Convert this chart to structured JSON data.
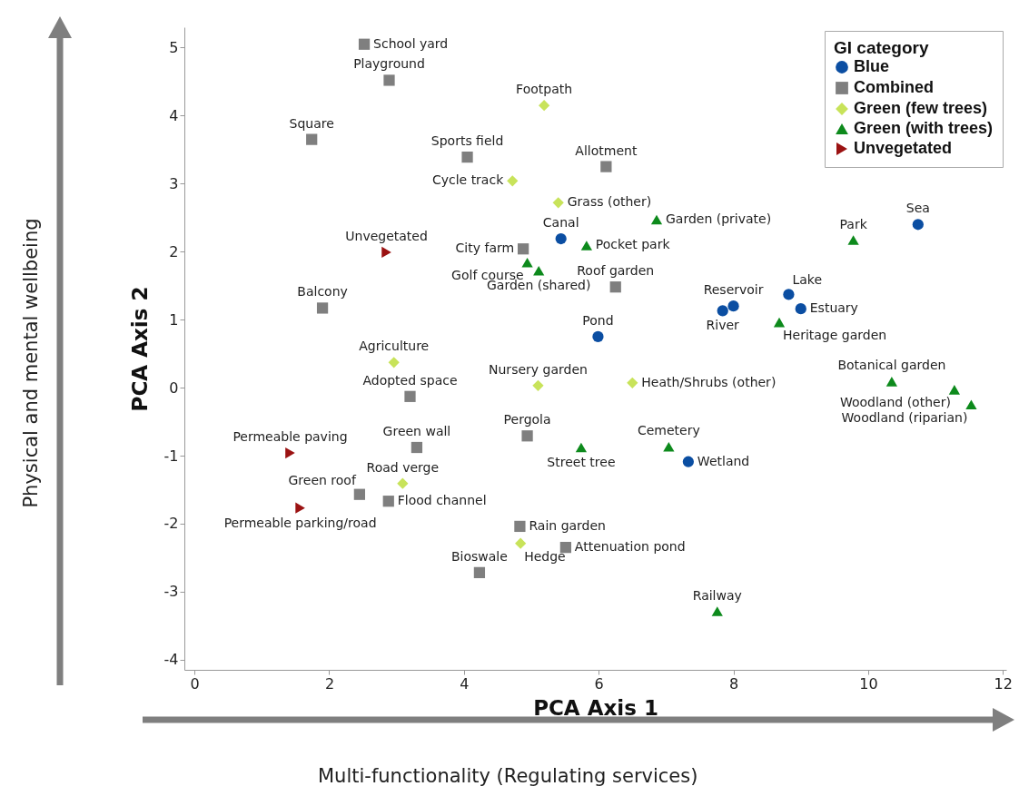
{
  "chart_data": {
    "type": "scatter",
    "xlabel": "PCA Axis 1",
    "ylabel": "PCA Axis 2",
    "legend_title": "GI category",
    "legend": "top right",
    "xlim": [
      -0.15,
      12.05
    ],
    "ylim": [
      -4.15,
      5.3
    ],
    "xticks": [
      0,
      2,
      4,
      6,
      8,
      10,
      12
    ],
    "yticks": [
      -4,
      -3,
      -2,
      -1,
      0,
      1,
      2,
      3,
      4,
      5
    ],
    "series": [
      {
        "name": "Blue",
        "color": "#0b4ea2",
        "marker": "circle",
        "x": [
          5.44,
          10.74,
          8.0,
          7.84,
          8.82,
          9.0,
          5.99,
          7.33
        ],
        "values": [
          2.19,
          2.4,
          1.2,
          1.13,
          1.37,
          1.16,
          0.75,
          -1.09
        ]
      },
      {
        "name": "Combined",
        "color": "#7f7f7f",
        "marker": "square",
        "x": [
          2.52,
          2.89,
          1.74,
          4.05,
          6.11,
          4.88,
          6.25,
          1.9,
          3.2,
          3.3,
          4.94,
          2.45,
          2.88,
          4.83,
          5.51,
          4.23
        ],
        "values": [
          5.05,
          4.52,
          3.65,
          3.39,
          3.25,
          2.04,
          1.48,
          1.17,
          -0.13,
          -0.88,
          -0.71,
          -1.57,
          -1.67,
          -2.04,
          -2.35,
          -2.72
        ]
      },
      {
        "name": "Green (few trees)",
        "color": "#c8e35a",
        "marker": "diamond",
        "x": [
          5.19,
          4.72,
          5.4,
          2.96,
          5.1,
          6.5,
          3.09,
          4.84
        ],
        "values": [
          4.15,
          3.04,
          2.72,
          0.37,
          0.03,
          0.07,
          -1.41,
          -2.29
        ]
      },
      {
        "name": "Green (with trees)",
        "color": "#0d8a1c",
        "marker": "triangle",
        "x": [
          6.86,
          5.82,
          9.78,
          4.94,
          5.11,
          8.68,
          10.35,
          11.28,
          11.53,
          5.74,
          7.04,
          7.76
        ],
        "values": [
          2.47,
          2.09,
          2.17,
          1.84,
          1.72,
          0.96,
          0.09,
          -0.03,
          -0.25,
          -0.88,
          -0.87,
          -3.29
        ]
      },
      {
        "name": "Unvegetated",
        "color": "#9b1212",
        "marker": "triangle-right",
        "x": [
          2.85,
          1.42,
          1.57
        ],
        "values": [
          1.99,
          -0.96,
          -1.77
        ]
      }
    ],
    "annotations": [
      "Physical and mental wellbeing",
      "Multi-functionality (Regulating services)",
      {
        "text": "Canal",
        "x": 5.44,
        "y": 2.19
      },
      {
        "text": "Sea",
        "x": 10.74,
        "y": 2.4
      },
      {
        "text": "Reservoir",
        "x": 8.0,
        "y": 1.2
      },
      {
        "text": "River",
        "x": 7.84,
        "y": 1.13
      },
      {
        "text": "Lake",
        "x": 8.82,
        "y": 1.37
      },
      {
        "text": "Estuary",
        "x": 9.0,
        "y": 1.16
      },
      {
        "text": "Pond",
        "x": 5.99,
        "y": 0.75
      },
      {
        "text": "Wetland",
        "x": 7.33,
        "y": -1.09
      },
      {
        "text": "School yard",
        "x": 2.52,
        "y": 5.05
      },
      {
        "text": "Playground",
        "x": 2.89,
        "y": 4.52
      },
      {
        "text": "Square",
        "x": 1.74,
        "y": 3.65
      },
      {
        "text": "Sports field",
        "x": 4.05,
        "y": 3.39
      },
      {
        "text": "Allotment",
        "x": 6.11,
        "y": 3.25
      },
      {
        "text": "City farm",
        "x": 4.88,
        "y": 2.04
      },
      {
        "text": "Roof garden",
        "x": 6.25,
        "y": 1.48
      },
      {
        "text": "Balcony",
        "x": 1.9,
        "y": 1.17
      },
      {
        "text": "Adopted space",
        "x": 3.2,
        "y": -0.13
      },
      {
        "text": "Green wall",
        "x": 3.3,
        "y": -0.88
      },
      {
        "text": "Pergola",
        "x": 4.94,
        "y": -0.71
      },
      {
        "text": "Green roof",
        "x": 2.45,
        "y": -1.57
      },
      {
        "text": "Flood channel",
        "x": 2.88,
        "y": -1.67
      },
      {
        "text": "Rain garden",
        "x": 4.83,
        "y": -2.04
      },
      {
        "text": "Attenuation pond",
        "x": 5.51,
        "y": -2.35
      },
      {
        "text": "Bioswale",
        "x": 4.23,
        "y": -2.72
      },
      {
        "text": "Footpath",
        "x": 5.19,
        "y": 4.15
      },
      {
        "text": "Cycle track",
        "x": 4.72,
        "y": 3.04
      },
      {
        "text": "Grass (other)",
        "x": 5.4,
        "y": 2.72
      },
      {
        "text": "Agriculture",
        "x": 2.96,
        "y": 0.37
      },
      {
        "text": "Nursery garden",
        "x": 5.1,
        "y": 0.03
      },
      {
        "text": "Heath/Shrubs (other)",
        "x": 6.5,
        "y": 0.07
      },
      {
        "text": "Road verge",
        "x": 3.09,
        "y": -1.41
      },
      {
        "text": "Hedge",
        "x": 4.84,
        "y": -2.29
      },
      {
        "text": "Garden (private)",
        "x": 6.86,
        "y": 2.47
      },
      {
        "text": "Pocket park",
        "x": 5.82,
        "y": 2.09
      },
      {
        "text": "Park",
        "x": 9.78,
        "y": 2.17
      },
      {
        "text": "Golf course",
        "x": 4.94,
        "y": 1.84
      },
      {
        "text": "Garden (shared)",
        "x": 5.11,
        "y": 1.72
      },
      {
        "text": "Heritage garden",
        "x": 8.68,
        "y": 0.96
      },
      {
        "text": "Botanical garden",
        "x": 10.35,
        "y": 0.09
      },
      {
        "text": "Woodland (other)",
        "x": 11.28,
        "y": -0.03
      },
      {
        "text": "Woodland (riparian)",
        "x": 11.53,
        "y": -0.25
      },
      {
        "text": "Street tree",
        "x": 5.74,
        "y": -0.88
      },
      {
        "text": "Cemetery",
        "x": 7.04,
        "y": -0.87
      },
      {
        "text": "Railway",
        "x": 7.76,
        "y": -3.29
      },
      {
        "text": "Unvegetated",
        "x": 2.85,
        "y": 1.99
      },
      {
        "text": "Permeable paving",
        "x": 1.42,
        "y": -0.96
      },
      {
        "text": "Permeable parking/road",
        "x": 1.57,
        "y": -1.77
      }
    ]
  }
}
